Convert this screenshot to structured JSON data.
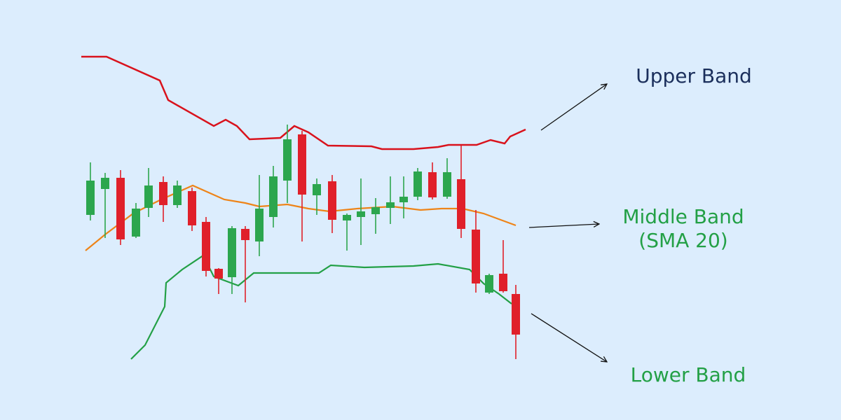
{
  "labels": {
    "upper": "Upper Band",
    "middle": "Middle Band",
    "sma": "(SMA 20)",
    "lower": "Lower Band"
  }
}
